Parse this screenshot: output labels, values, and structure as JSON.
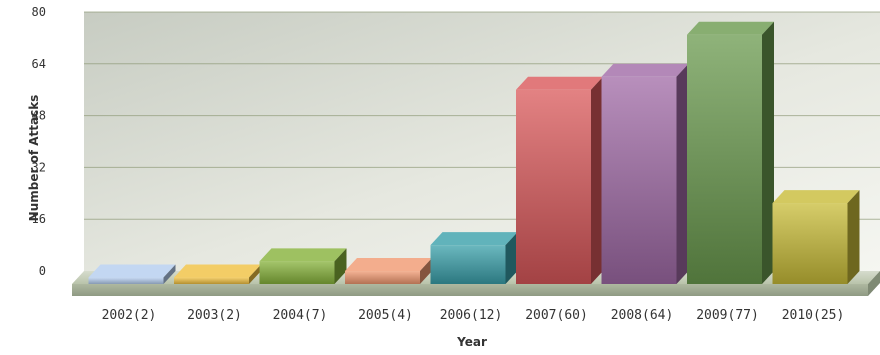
{
  "chart_data": {
    "type": "bar",
    "title": "",
    "xlabel": "Year",
    "ylabel": "Number of Attacks",
    "ylim": [
      0,
      80
    ],
    "yticks": [
      0,
      16,
      32,
      48,
      64,
      80
    ],
    "grid": true,
    "categories": [
      "2002(2)",
      "2003(2)",
      "2004(7)",
      "2005(4)",
      "2006(12)",
      "2007(60)",
      "2008(64)",
      "2009(77)",
      "2010(25)"
    ],
    "values": [
      2,
      2,
      7,
      4,
      12,
      60,
      64,
      77,
      25
    ],
    "colors": [
      "#b4cdef",
      "#f0c040",
      "#86b23a",
      "#f09870",
      "#3aa0aa",
      "#d9585a",
      "#a06aa6",
      "#6a9a4e",
      "#c8bc38"
    ]
  }
}
